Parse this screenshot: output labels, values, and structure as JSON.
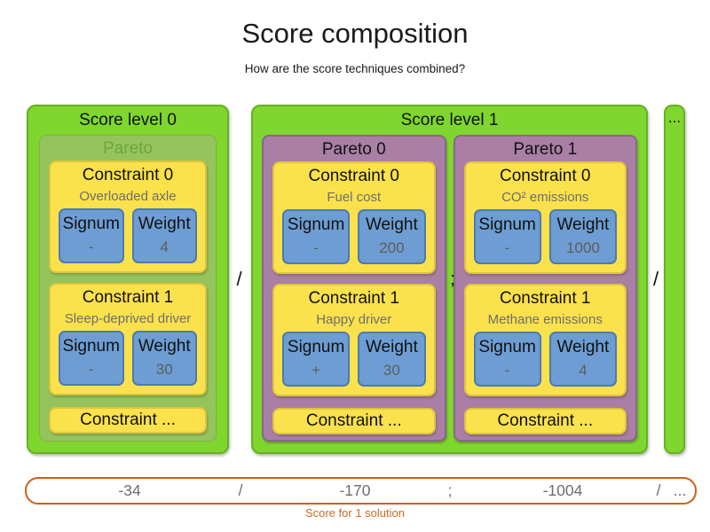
{
  "title": "Score composition",
  "subtitle": "How are the score techniques combined?",
  "labels": {
    "signum": "Signum",
    "weight": "Weight"
  },
  "levels": [
    {
      "label": "Score level 0",
      "paretos": [
        {
          "label": "Pareto",
          "constraints": [
            {
              "title": "Constraint 0",
              "name": "Overloaded axle",
              "signum": "-",
              "weight": "4"
            },
            {
              "title": "Constraint 1",
              "name": "Sleep-deprived driver",
              "signum": "-",
              "weight": "30"
            },
            {
              "title": "Constraint ..."
            }
          ]
        }
      ]
    },
    {
      "label": "Score level 1",
      "paretos": [
        {
          "label": "Pareto 0",
          "constraints": [
            {
              "title": "Constraint 0",
              "name": "Fuel cost",
              "signum": "-",
              "weight": "200"
            },
            {
              "title": "Constraint 1",
              "name": "Happy driver",
              "signum": "+",
              "weight": "30"
            },
            {
              "title": "Constraint ..."
            }
          ]
        },
        {
          "label": "Pareto 1",
          "constraints": [
            {
              "title": "Constraint 0",
              "name": "CO² emissions",
              "signum": "-",
              "weight": "1000"
            },
            {
              "title": "Constraint 1",
              "name": "Methane emissions",
              "signum": "-",
              "weight": "4"
            },
            {
              "title": "Constraint ..."
            }
          ]
        }
      ]
    }
  ],
  "separators": {
    "level0_level1": "/",
    "pareto0_pareto1": ";",
    "level1_more": "/"
  },
  "more_levels": {
    "label": "..."
  },
  "score_bar": {
    "items": [
      "-34",
      "/",
      "-170",
      ";",
      "-1004",
      "/",
      "..."
    ],
    "caption": "Score for 1 solution"
  },
  "colors": {
    "level_green": "#7ed62e",
    "level_green_border": "#66b21f",
    "pareto_olive": "#95c45c",
    "pareto_olive_text": "#6fa53e",
    "pareto_purple": "#a97fa5",
    "constraint_yellow": "#fbe14c",
    "signum_blue": "#6d9dd2",
    "muted_text": "#6e6e6e",
    "score_orange": "#d2691e"
  }
}
